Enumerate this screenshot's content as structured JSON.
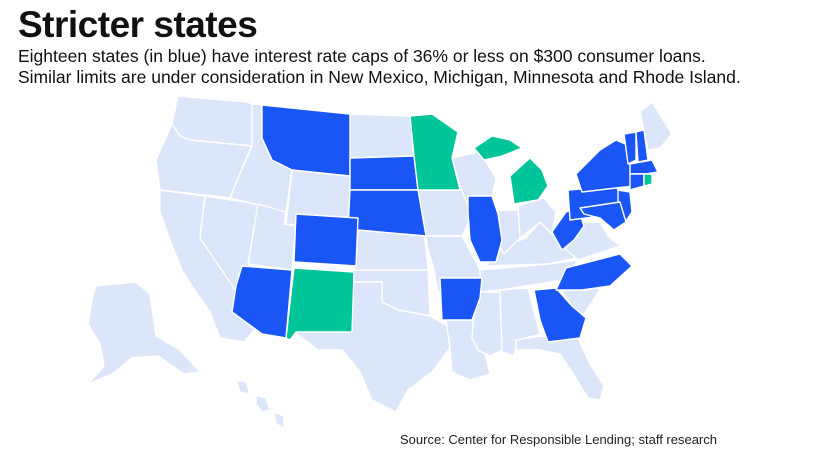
{
  "title": "Stricter states",
  "subtitle_line1": "Eighteen states (in blue) have interest rate caps of 36% or less on $300 consumer loans.",
  "subtitle_line2": "Similar limits are under consideration in New Mexico, Michigan, Minnesota and Rhode Island.",
  "source": "Source: Center for Responsible Lending; staff research",
  "colors": {
    "capped": "#1a56f5",
    "under_consideration": "#00c49a",
    "other": "#dce6fb",
    "border": "#ffffff"
  },
  "states_capped": [
    "Montana",
    "South Dakota",
    "Nebraska",
    "Colorado",
    "Arizona",
    "Illinois",
    "Arkansas",
    "Georgia",
    "North Carolina",
    "West Virginia",
    "Pennsylvania",
    "New York",
    "Vermont",
    "New Hampshire",
    "Massachusetts",
    "Connecticut",
    "New Jersey",
    "Maryland"
  ],
  "states_under_consideration": [
    "New Mexico",
    "Michigan",
    "Minnesota",
    "Rhode Island"
  ]
}
